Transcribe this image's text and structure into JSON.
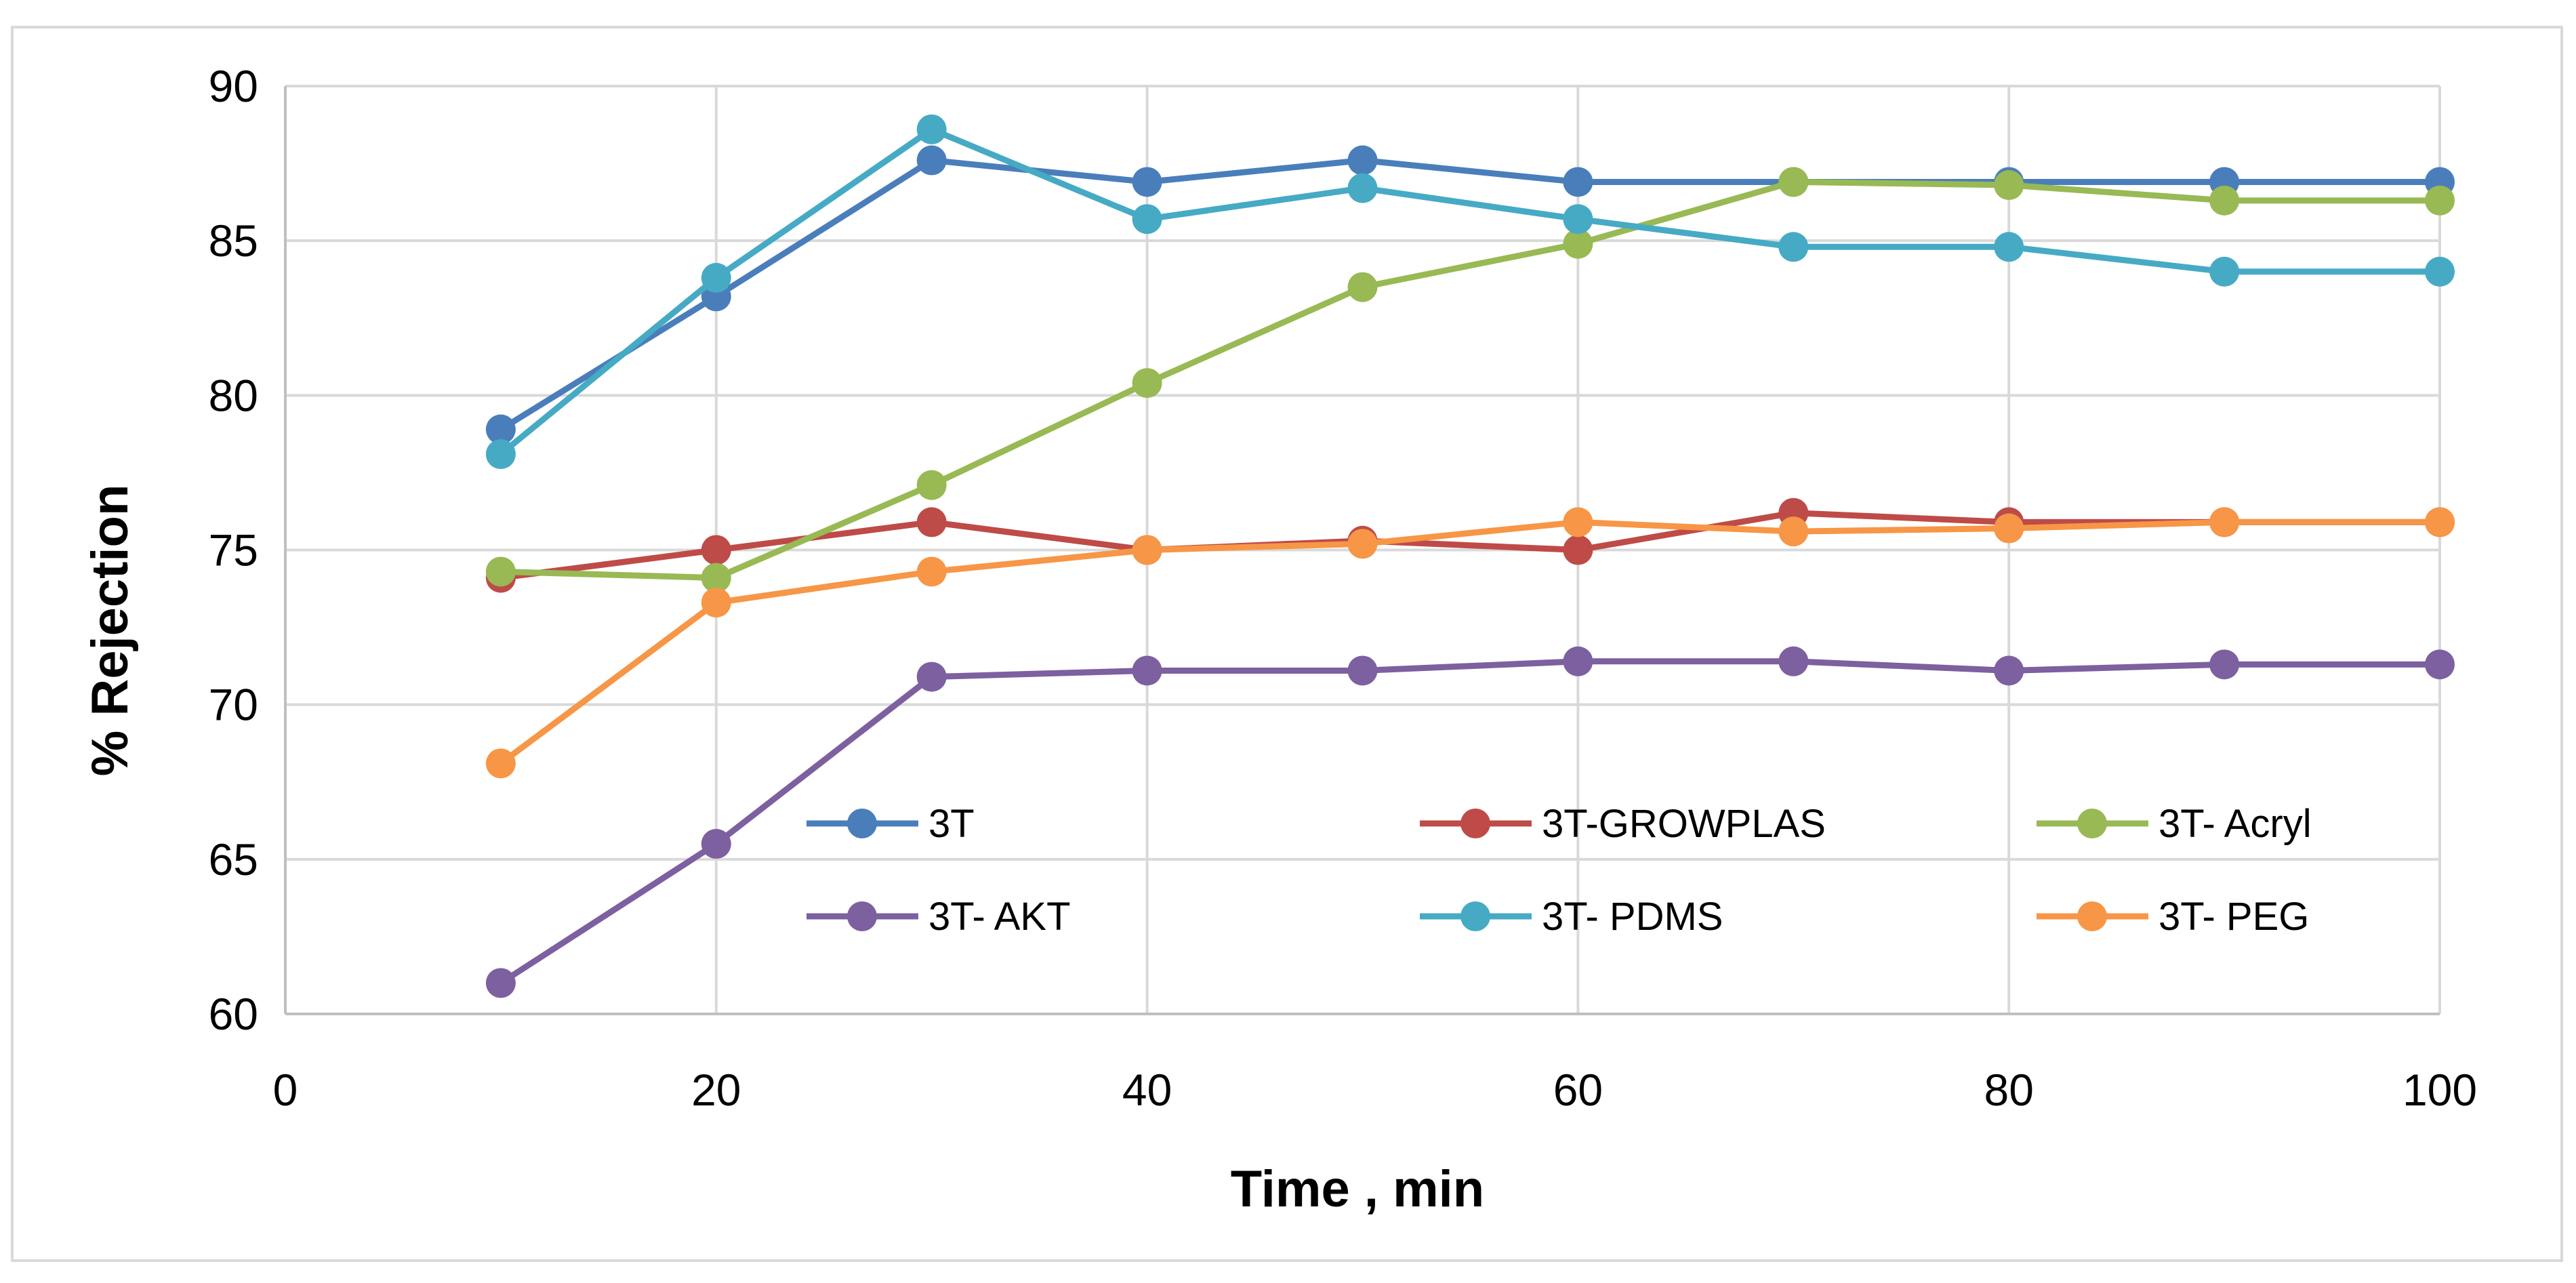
{
  "chart_data": {
    "type": "line",
    "title": "",
    "xlabel": "Time , min",
    "ylabel": "% Rejection",
    "xlim": [
      0,
      100
    ],
    "ylim": [
      60,
      90
    ],
    "x_ticks": [
      0,
      20,
      40,
      60,
      80,
      100
    ],
    "y_ticks": [
      60,
      65,
      70,
      75,
      80,
      85,
      90
    ],
    "grid": true,
    "legend_position": "inside-bottom-right",
    "x": [
      10,
      20,
      30,
      40,
      50,
      60,
      70,
      80,
      90,
      100
    ],
    "series": [
      {
        "name": "3T",
        "color": "#4A7EBB",
        "values": [
          78.9,
          83.2,
          87.6,
          86.9,
          87.6,
          86.9,
          86.9,
          86.9,
          86.9,
          86.9
        ]
      },
      {
        "name": "3T-GROWPLAS",
        "color": "#BE4B48",
        "values": [
          74.1,
          75.0,
          75.9,
          75.0,
          75.3,
          75.0,
          76.2,
          75.9,
          75.9,
          75.9
        ]
      },
      {
        "name": "3T- Acryl",
        "color": "#98B954",
        "values": [
          74.3,
          74.1,
          77.1,
          80.4,
          83.5,
          84.9,
          86.9,
          86.8,
          86.3,
          86.3
        ]
      },
      {
        "name": "3T- AKT",
        "color": "#7D60A0",
        "values": [
          61.0,
          65.5,
          70.9,
          71.1,
          71.1,
          71.4,
          71.4,
          71.1,
          71.3,
          71.3
        ]
      },
      {
        "name": "3T- PDMS",
        "color": "#46AAC5",
        "values": [
          78.1,
          83.8,
          88.6,
          85.7,
          86.7,
          85.7,
          84.8,
          84.8,
          84.0,
          84.0
        ]
      },
      {
        "name": "3T- PEG",
        "color": "#F79646",
        "values": [
          68.1,
          73.3,
          74.3,
          75.0,
          75.2,
          75.9,
          75.6,
          75.7,
          75.9,
          75.9
        ]
      }
    ]
  }
}
